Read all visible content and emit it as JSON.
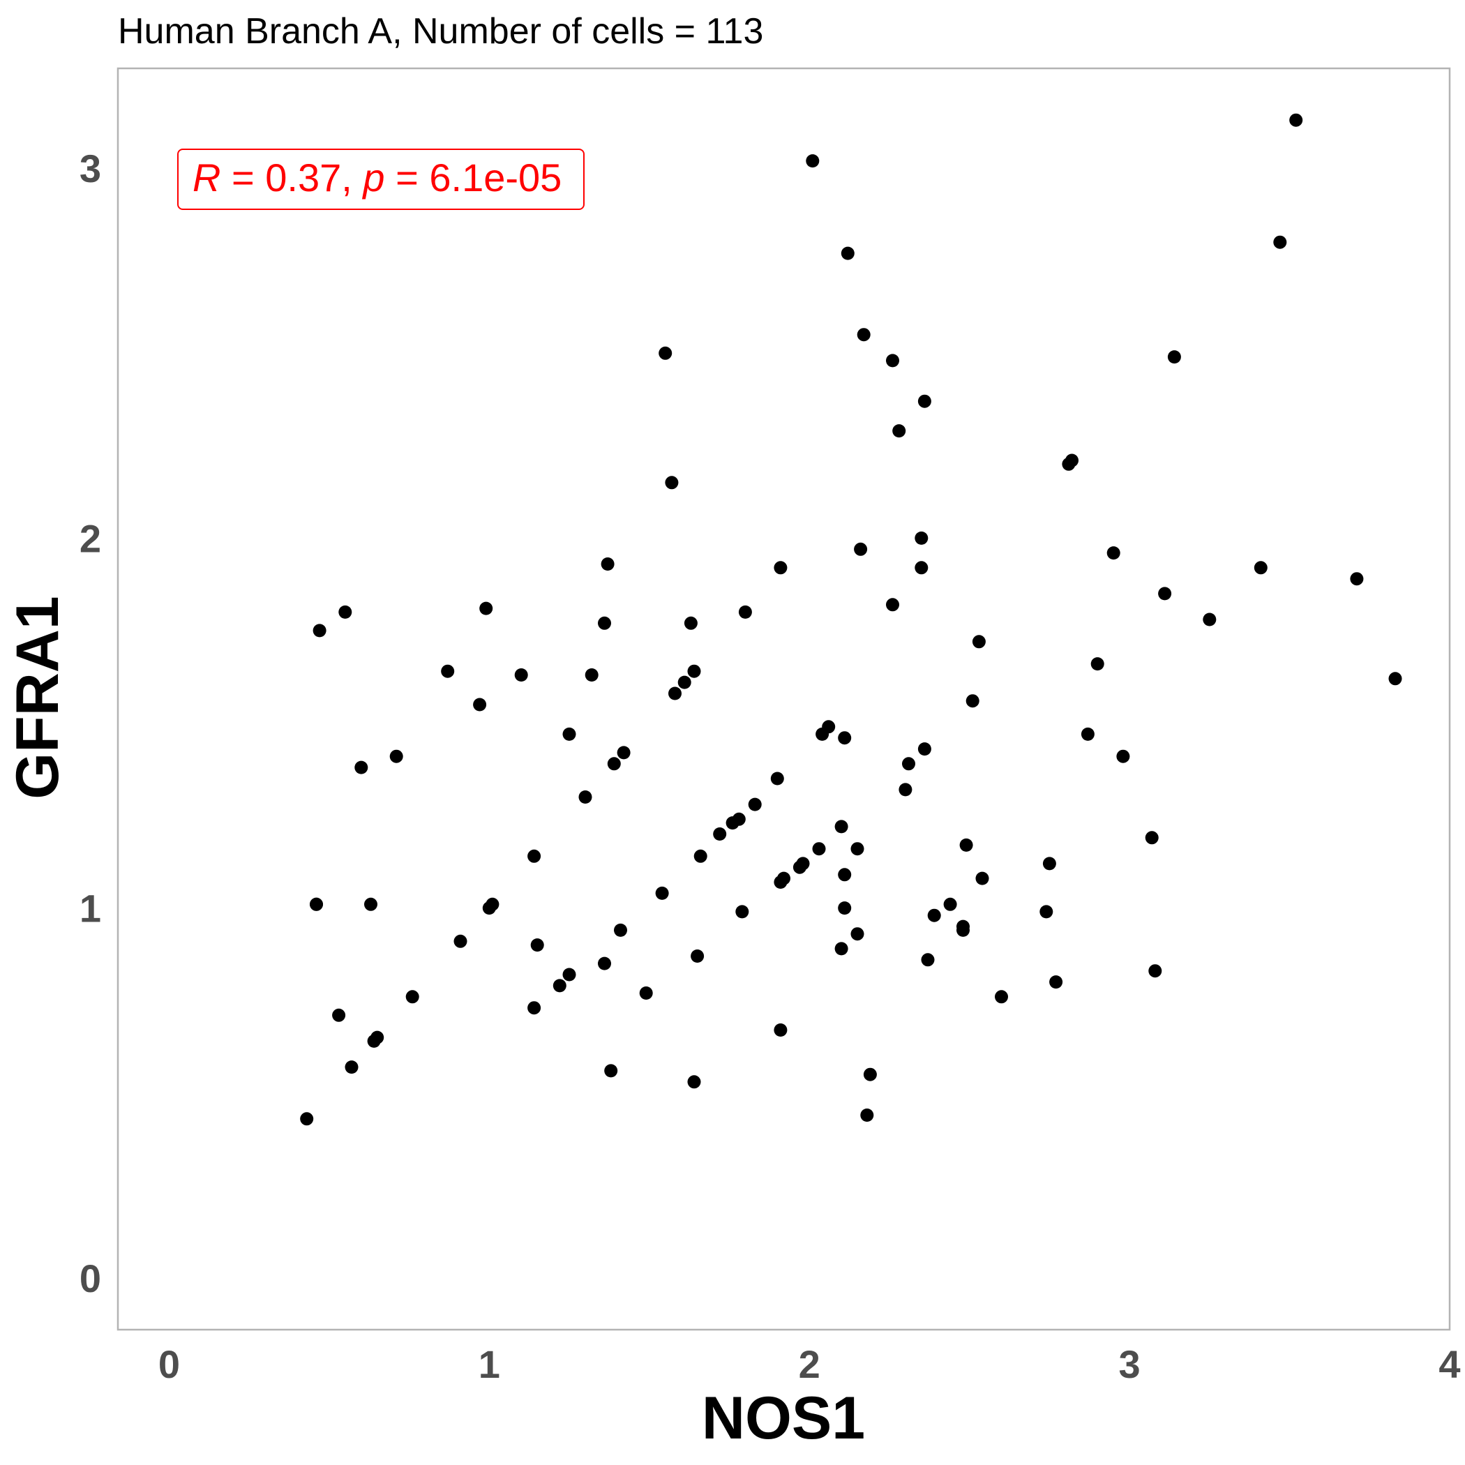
{
  "chart_data": {
    "type": "scatter",
    "title": "Human Branch A, Number of cells = 113",
    "xlabel": "NOS1",
    "ylabel": "GFRA1",
    "xlim": [
      -0.16,
      4.0
    ],
    "ylim": [
      -0.14,
      3.27
    ],
    "xticks": [
      "0",
      "1",
      "2",
      "3",
      "4"
    ],
    "yticks": [
      "0",
      "1",
      "2",
      "3"
    ],
    "grid": false,
    "marker_color": "#000000",
    "annotation": {
      "r_symbol": "R",
      "r_text": " = 0.37, ",
      "p_symbol": "p",
      "p_text": " = 6.1e-05",
      "color": "#ff0000"
    },
    "points": [
      [
        0.43,
        0.43
      ],
      [
        0.46,
        1.01
      ],
      [
        0.47,
        1.75
      ],
      [
        0.53,
        0.71
      ],
      [
        0.55,
        1.8
      ],
      [
        0.57,
        0.57
      ],
      [
        0.6,
        1.38
      ],
      [
        0.63,
        1.01
      ],
      [
        0.64,
        0.64
      ],
      [
        0.65,
        0.65
      ],
      [
        0.71,
        1.41
      ],
      [
        0.76,
        0.76
      ],
      [
        0.87,
        1.64
      ],
      [
        0.91,
        0.91
      ],
      [
        0.97,
        1.55
      ],
      [
        0.99,
        1.81
      ],
      [
        1.0,
        1.0
      ],
      [
        1.01,
        1.01
      ],
      [
        1.1,
        1.63
      ],
      [
        1.14,
        1.14
      ],
      [
        1.14,
        0.73
      ],
      [
        1.15,
        0.9
      ],
      [
        1.22,
        0.79
      ],
      [
        1.25,
        1.47
      ],
      [
        1.25,
        0.82
      ],
      [
        1.3,
        1.3
      ],
      [
        1.32,
        1.63
      ],
      [
        1.36,
        1.77
      ],
      [
        1.36,
        0.85
      ],
      [
        1.37,
        1.93
      ],
      [
        1.38,
        0.56
      ],
      [
        1.39,
        1.39
      ],
      [
        1.41,
        0.94
      ],
      [
        1.42,
        1.42
      ],
      [
        1.49,
        0.77
      ],
      [
        1.54,
        1.04
      ],
      [
        1.55,
        2.5
      ],
      [
        1.57,
        2.15
      ],
      [
        1.58,
        1.58
      ],
      [
        1.61,
        1.61
      ],
      [
        1.63,
        1.77
      ],
      [
        1.64,
        1.64
      ],
      [
        1.64,
        0.53
      ],
      [
        1.65,
        0.87
      ],
      [
        1.66,
        1.14
      ],
      [
        1.72,
        1.2
      ],
      [
        1.76,
        1.23
      ],
      [
        1.78,
        1.24
      ],
      [
        1.79,
        0.99
      ],
      [
        1.8,
        1.8
      ],
      [
        1.83,
        1.28
      ],
      [
        1.9,
        1.35
      ],
      [
        1.91,
        0.67
      ],
      [
        1.91,
        1.92
      ],
      [
        1.91,
        1.07
      ],
      [
        1.92,
        1.08
      ],
      [
        1.97,
        1.11
      ],
      [
        1.98,
        1.12
      ],
      [
        2.01,
        3.02
      ],
      [
        2.03,
        1.16
      ],
      [
        2.04,
        1.47
      ],
      [
        2.06,
        1.49
      ],
      [
        2.1,
        1.22
      ],
      [
        2.1,
        0.89
      ],
      [
        2.11,
        1.46
      ],
      [
        2.11,
        1.09
      ],
      [
        2.11,
        1.0
      ],
      [
        2.12,
        2.77
      ],
      [
        2.15,
        0.93
      ],
      [
        2.15,
        1.16
      ],
      [
        2.16,
        1.97
      ],
      [
        2.17,
        2.55
      ],
      [
        2.18,
        0.44
      ],
      [
        2.19,
        0.55
      ],
      [
        2.26,
        1.82
      ],
      [
        2.26,
        2.48
      ],
      [
        2.28,
        2.29
      ],
      [
        2.3,
        1.32
      ],
      [
        2.31,
        1.39
      ],
      [
        2.35,
        1.92
      ],
      [
        2.35,
        2.0
      ],
      [
        2.36,
        2.37
      ],
      [
        2.36,
        1.43
      ],
      [
        2.37,
        0.86
      ],
      [
        2.39,
        0.98
      ],
      [
        2.44,
        1.01
      ],
      [
        2.48,
        0.94
      ],
      [
        2.48,
        0.95
      ],
      [
        2.49,
        1.17
      ],
      [
        2.51,
        1.56
      ],
      [
        2.53,
        1.72
      ],
      [
        2.54,
        1.08
      ],
      [
        2.6,
        0.76
      ],
      [
        2.74,
        0.99
      ],
      [
        2.75,
        1.12
      ],
      [
        2.77,
        0.8
      ],
      [
        2.81,
        2.2
      ],
      [
        2.82,
        2.21
      ],
      [
        2.87,
        1.47
      ],
      [
        2.9,
        1.66
      ],
      [
        2.95,
        1.96
      ],
      [
        2.98,
        1.41
      ],
      [
        3.07,
        1.19
      ],
      [
        3.08,
        0.83
      ],
      [
        3.11,
        1.85
      ],
      [
        3.14,
        2.49
      ],
      [
        3.25,
        1.78
      ],
      [
        3.41,
        1.92
      ],
      [
        3.47,
        2.8
      ],
      [
        3.52,
        3.13
      ],
      [
        3.71,
        1.89
      ],
      [
        3.83,
        1.62
      ],
      [
        0.46,
        1.01
      ]
    ]
  }
}
